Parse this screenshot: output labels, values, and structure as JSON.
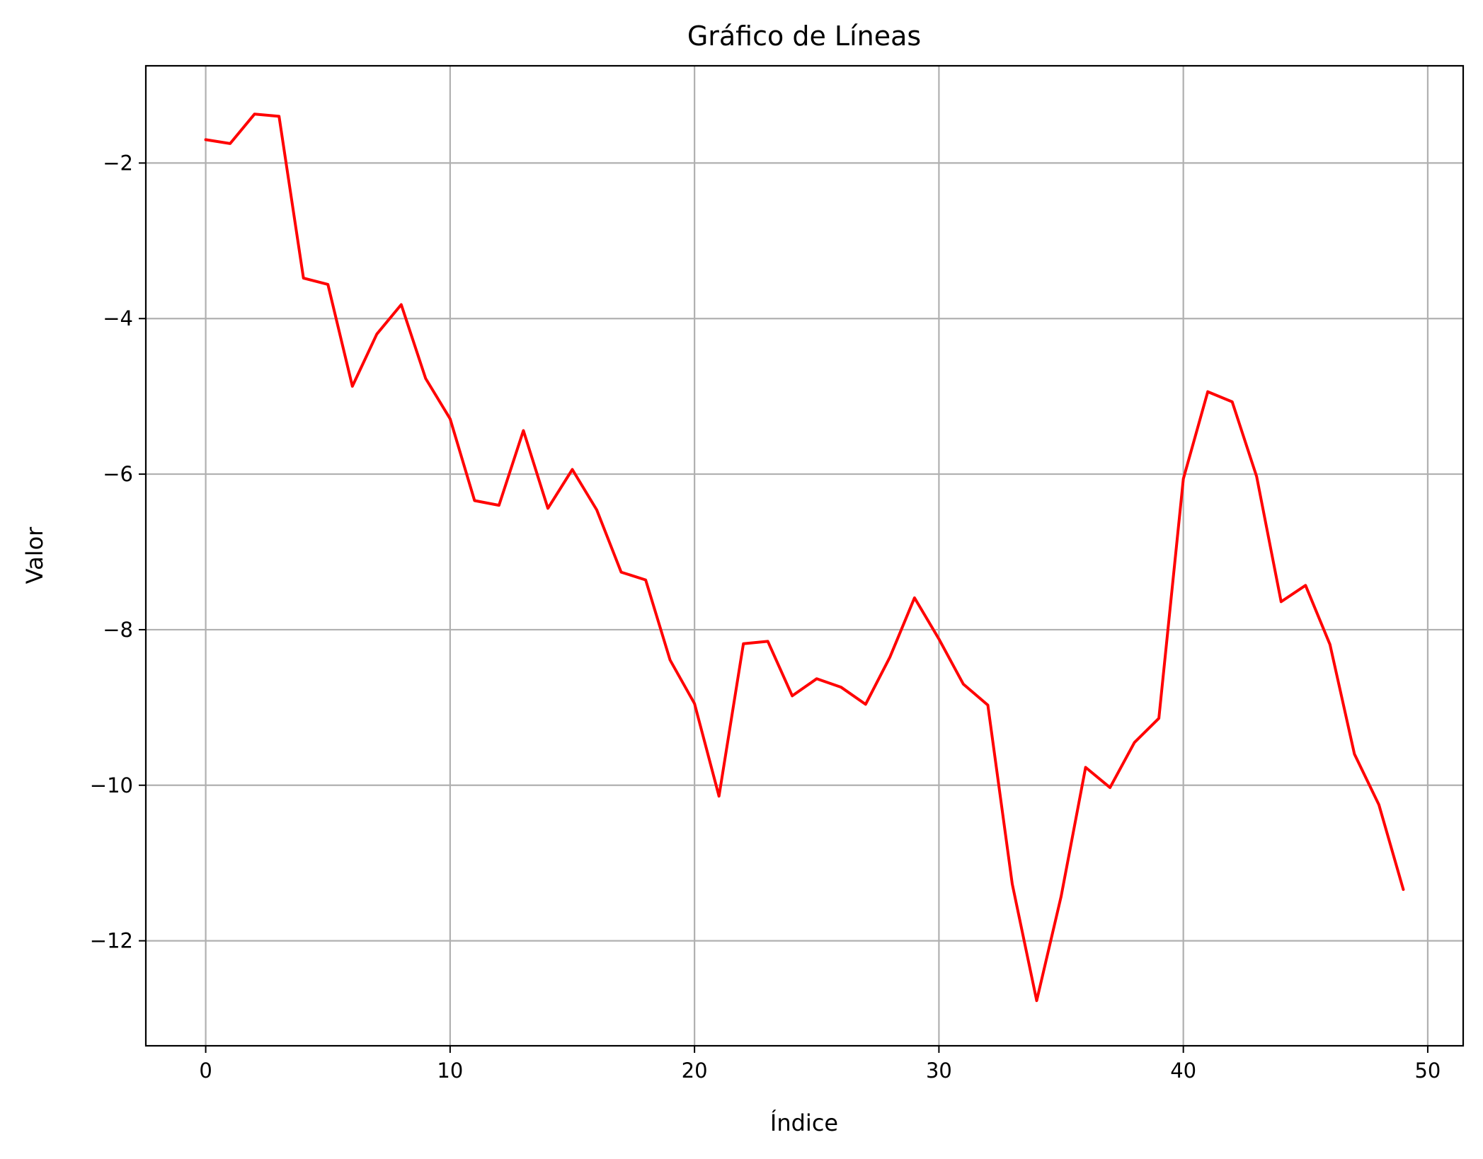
{
  "chart_data": {
    "type": "line",
    "title": "Gráfico de Líneas",
    "xlabel": "Índice",
    "ylabel": "Valor",
    "xlim": [
      -2.45,
      51.45
    ],
    "ylim": [
      -13.35,
      -0.75
    ],
    "xticks": [
      0,
      10,
      20,
      30,
      40,
      50
    ],
    "xtick_labels": [
      "0",
      "10",
      "20",
      "30",
      "40",
      "50"
    ],
    "yticks": [
      -2,
      -4,
      -6,
      -8,
      -10,
      -12
    ],
    "ytick_labels": [
      "−2",
      "−4",
      "−6",
      "−8",
      "−10",
      "−12"
    ],
    "grid": true,
    "legend": "none",
    "series": [
      {
        "color": "#ff0000",
        "x": [
          0,
          1,
          2,
          3,
          4,
          5,
          6,
          7,
          8,
          9,
          10,
          11,
          12,
          13,
          14,
          15,
          16,
          17,
          18,
          19,
          20,
          21,
          22,
          23,
          24,
          25,
          26,
          27,
          28,
          29,
          30,
          31,
          32,
          33,
          34,
          35,
          36,
          37,
          38,
          39,
          40,
          41,
          42,
          43,
          44,
          45,
          46,
          47,
          48,
          49
        ],
        "values": [
          -1.7,
          -1.75,
          -1.37,
          -1.4,
          -3.48,
          -3.56,
          -4.87,
          -4.2,
          -3.82,
          -4.77,
          -5.29,
          -6.34,
          -6.4,
          -5.44,
          -6.44,
          -5.94,
          -6.46,
          -7.26,
          -7.36,
          -8.39,
          -8.95,
          -10.14,
          -8.18,
          -8.15,
          -8.85,
          -8.63,
          -8.74,
          -8.96,
          -8.35,
          -7.59,
          -8.12,
          -8.7,
          -8.97,
          -11.27,
          -12.77,
          -11.43,
          -9.77,
          -10.03,
          -9.45,
          -9.14,
          -6.06,
          -4.94,
          -5.07,
          -6.03,
          -7.64,
          -7.43,
          -8.19,
          -9.6,
          -10.25,
          -11.34
        ]
      }
    ]
  }
}
